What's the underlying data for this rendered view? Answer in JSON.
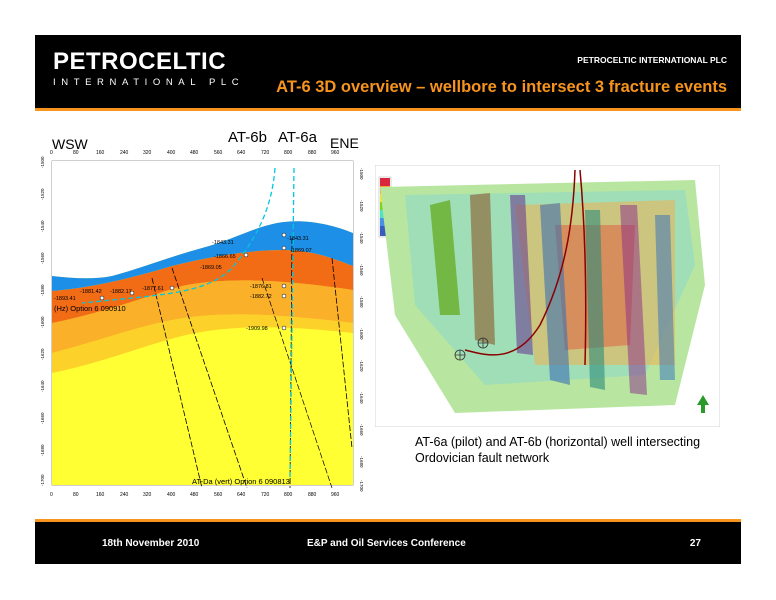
{
  "header": {
    "logo_word": "PETROCELTIC",
    "logo_sub": "INTERNATIONAL PLC",
    "company": "PETROCELTIC INTERNATIONAL PLC",
    "title": "AT-6 3D overview – wellbore to intersect 3 fracture events"
  },
  "section": {
    "label_wsw": "WSW",
    "label_ene": "ENE",
    "label_at6b": "AT-6b",
    "label_at6a": "AT-6a",
    "x_ticks": [
      "0",
      "80",
      "160",
      "240",
      "320",
      "400",
      "480",
      "560",
      "640",
      "720",
      "800",
      "880",
      "960"
    ],
    "y_ticks_left": [
      "-1500",
      "-1520",
      "-1540",
      "-1560",
      "-1580",
      "-1600",
      "-1620",
      "-1640",
      "-1660",
      "-1680",
      "-1700"
    ],
    "horizon_label_1": "(Hz) Option 6 090910",
    "horizon_label_2": "AT-Da (vert) Option 6 090813",
    "depth_labels": [
      "-1843.31",
      "-1843.31",
      "-1869.07",
      "-1866.65",
      "-1869.05",
      "-1876.81",
      "-1882.72",
      "-1909.98",
      "-1893.41",
      "-1881.42",
      "-1882.17",
      "-1877.61"
    ]
  },
  "caption": "AT-6a (pilot) and  AT-6b (horizontal) well intersecting Ordovician fault network",
  "footer": {
    "date": "18th November 2010",
    "conference": "E&P and Oil Services Conference",
    "page": "27"
  },
  "colors": {
    "orange": "#f7941d",
    "black": "#000000"
  }
}
